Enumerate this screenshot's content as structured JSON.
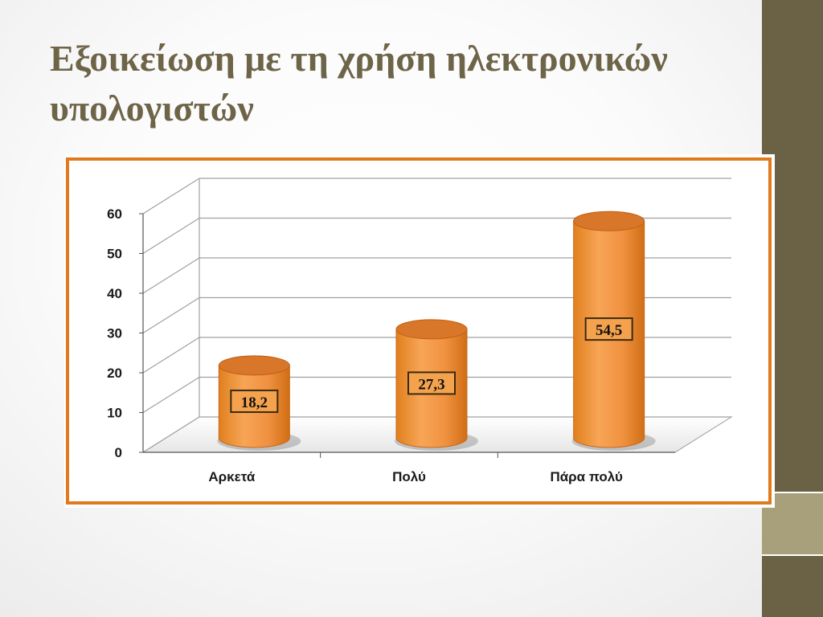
{
  "slide": {
    "title": "Εξοικείωση με τη χρήση ηλεκτρονικών υπολογιστών"
  },
  "colors": {
    "accent_band": "#6b6145",
    "accent_band_light": "#a8a07a",
    "title_color": "#6e6448",
    "frame_border": "#e07a1a",
    "bar_fill": "#f0953c",
    "bar_top": "#d8772a"
  },
  "chart_data": {
    "type": "bar",
    "categories": [
      "Αρκετά",
      "Πολύ",
      "Πάρα πολύ"
    ],
    "values": [
      18.2,
      27.3,
      54.5
    ],
    "value_labels": [
      "18,2",
      "27,3",
      "54,5"
    ],
    "title": "",
    "xlabel": "",
    "ylabel": "",
    "ylim": [
      0,
      60
    ],
    "yticks": [
      0,
      10,
      20,
      30,
      40,
      50,
      60
    ],
    "grid": true,
    "legend": "none",
    "style": "3d-cylinder"
  }
}
